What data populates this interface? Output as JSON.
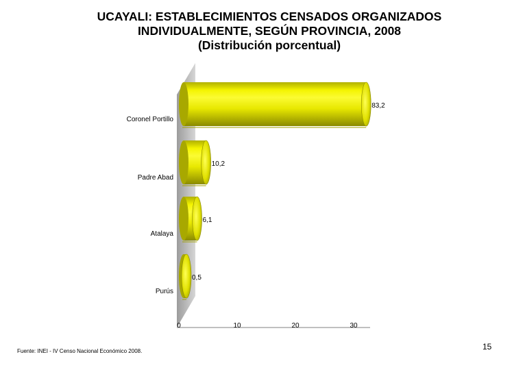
{
  "chart_data": {
    "type": "bar",
    "orientation": "horizontal",
    "title_lines": [
      "UCAYALI: ESTABLECIMIENTOS CENSADOS ORGANIZADOS",
      "INDIVIDUALMENTE, SEGÚN PROVINCIA, 2008",
      "(Distribución porcentual)"
    ],
    "categories": [
      "Coronel Portillo",
      "Padre Abad",
      "Atalaya",
      "Purús"
    ],
    "values": [
      83.2,
      10.2,
      6.1,
      0.5
    ],
    "value_labels": [
      "83,2",
      "10,2",
      "6,1",
      "0,5"
    ],
    "x_ticks": [
      0,
      10,
      20,
      30
    ],
    "bar_color": "#f2f200",
    "wall_color": "#c0c0c0"
  },
  "source": "Fuente: INEI - IV Censo Nacional Económico 2008.",
  "page_number": "15"
}
